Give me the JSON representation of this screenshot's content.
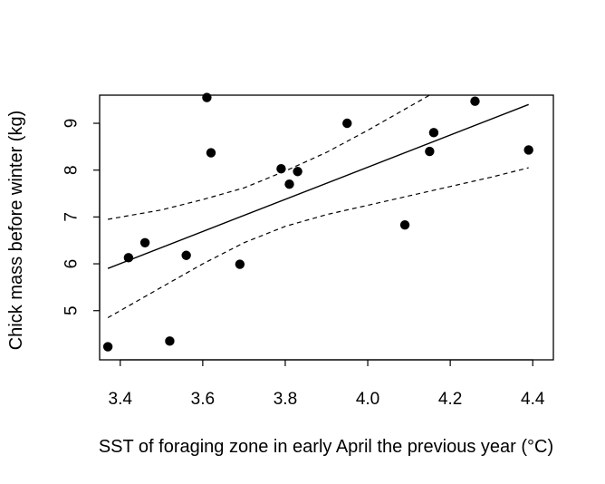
{
  "chart_data": {
    "type": "scatter",
    "title": "",
    "xlabel": "SST of foraging zone in early April the previous year (°C)",
    "ylabel": "Chick mass before winter (kg)",
    "xlim": [
      3.35,
      4.45
    ],
    "ylim": [
      3.95,
      9.6
    ],
    "x_ticks": [
      3.4,
      3.6,
      3.8,
      4.0,
      4.2,
      4.4
    ],
    "x_tick_labels": [
      "3.4",
      "3.6",
      "3.8",
      "4.0",
      "4.2",
      "4.4"
    ],
    "y_ticks": [
      5,
      6,
      7,
      8,
      9
    ],
    "y_tick_labels": [
      "5",
      "6",
      "7",
      "8",
      "9"
    ],
    "grid": false,
    "points": [
      {
        "x": 3.37,
        "y": 4.23
      },
      {
        "x": 3.42,
        "y": 6.13
      },
      {
        "x": 3.46,
        "y": 6.45
      },
      {
        "x": 3.52,
        "y": 4.35
      },
      {
        "x": 3.56,
        "y": 6.18
      },
      {
        "x": 3.61,
        "y": 9.55
      },
      {
        "x": 3.62,
        "y": 8.37
      },
      {
        "x": 3.69,
        "y": 5.99
      },
      {
        "x": 3.79,
        "y": 8.03
      },
      {
        "x": 3.81,
        "y": 7.7
      },
      {
        "x": 3.83,
        "y": 7.97
      },
      {
        "x": 3.95,
        "y": 9.0
      },
      {
        "x": 4.09,
        "y": 6.83
      },
      {
        "x": 4.15,
        "y": 8.4
      },
      {
        "x": 4.16,
        "y": 8.8
      },
      {
        "x": 4.26,
        "y": 9.47
      },
      {
        "x": 4.39,
        "y": 8.43
      }
    ],
    "fit_line": {
      "x": [
        3.37,
        4.39
      ],
      "y": [
        5.9,
        9.4
      ]
    },
    "confidence_upper": {
      "x": [
        3.37,
        3.5,
        3.6,
        3.7,
        3.8,
        3.9,
        4.0,
        4.1,
        4.19
      ],
      "y": [
        6.95,
        7.15,
        7.37,
        7.62,
        7.98,
        8.38,
        8.85,
        9.35,
        9.8
      ]
    },
    "confidence_lower": {
      "x": [
        3.37,
        3.5,
        3.6,
        3.7,
        3.8,
        3.9,
        4.0,
        4.1,
        4.2,
        4.3,
        4.39
      ],
      "y": [
        4.85,
        5.5,
        6.0,
        6.45,
        6.8,
        7.05,
        7.25,
        7.45,
        7.65,
        7.85,
        8.05
      ]
    }
  }
}
